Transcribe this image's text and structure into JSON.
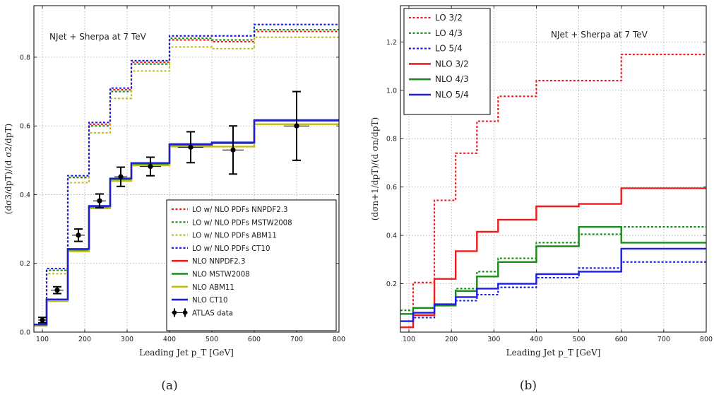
{
  "panels": [
    {
      "label": "(a)"
    },
    {
      "label": "(b)"
    }
  ],
  "chart_data": [
    {
      "type": "line",
      "step": true,
      "annotation": "NJet + Sherpa at 7 TeV",
      "xlabel": "Leading Jet p_T [GeV]",
      "ylabel": "(dσ3/dpT)/(d σ2/dpT)",
      "xlim": [
        80,
        800
      ],
      "ylim": [
        0,
        0.95
      ],
      "xticks": [
        100,
        200,
        300,
        400,
        500,
        600,
        700,
        800
      ],
      "yticks": [
        0.0,
        0.2,
        0.4,
        0.6,
        0.8
      ],
      "grid": true,
      "legend_position": "lower-right",
      "bin_edges": [
        80,
        110,
        160,
        210,
        260,
        310,
        400,
        500,
        600,
        800
      ],
      "series": [
        {
          "name": "LO w/ NLO PDFs NNPDF2.3",
          "style": "dotted",
          "color": "#ee1c1c",
          "values": [
            0.02,
            0.18,
            0.45,
            0.605,
            0.705,
            0.785,
            0.85,
            0.845,
            0.875
          ]
        },
        {
          "name": "LO w/ NLO PDFs MSTW2008",
          "style": "dotted",
          "color": "#1a8c1a",
          "values": [
            0.02,
            0.18,
            0.45,
            0.6,
            0.7,
            0.78,
            0.855,
            0.85,
            0.88
          ]
        },
        {
          "name": "LO w/ NLO PDFs ABM11",
          "style": "dotted",
          "color": "#c2bd1e",
          "values": [
            0.02,
            0.17,
            0.435,
            0.58,
            0.68,
            0.76,
            0.83,
            0.825,
            0.858
          ]
        },
        {
          "name": "LO w/ NLO PDFs CT10",
          "style": "dotted",
          "color": "#1c1ce6",
          "values": [
            0.02,
            0.185,
            0.455,
            0.61,
            0.71,
            0.79,
            0.862,
            0.862,
            0.895
          ]
        },
        {
          "name": "NLO NNPDF2.3",
          "style": "solid",
          "color": "#ee1c1c",
          "values": [
            0.022,
            0.095,
            0.24,
            0.365,
            0.445,
            0.49,
            0.545,
            0.55,
            0.615
          ]
        },
        {
          "name": "NLO MSTW2008",
          "style": "solid",
          "color": "#1a8c1a",
          "values": [
            0.022,
            0.095,
            0.24,
            0.365,
            0.445,
            0.49,
            0.545,
            0.55,
            0.615
          ]
        },
        {
          "name": "NLO ABM11",
          "style": "solid",
          "color": "#c2bd1e",
          "values": [
            0.018,
            0.09,
            0.235,
            0.36,
            0.44,
            0.485,
            0.54,
            0.54,
            0.605
          ]
        },
        {
          "name": "NLO CT10",
          "style": "solid",
          "color": "#1c1ce6",
          "values": [
            0.022,
            0.095,
            0.242,
            0.367,
            0.447,
            0.492,
            0.547,
            0.552,
            0.617
          ]
        }
      ],
      "data_points": {
        "name": "ATLAS data",
        "color": "#000000",
        "x": [
          100,
          135,
          185,
          235,
          285,
          355,
          450,
          550,
          700
        ],
        "y": [
          0.035,
          0.122,
          0.282,
          0.382,
          0.452,
          0.482,
          0.538,
          0.53,
          0.6
        ],
        "xerr": [
          10,
          15,
          15,
          15,
          15,
          25,
          30,
          25,
          30
        ],
        "yerr": [
          0.008,
          0.01,
          0.018,
          0.02,
          0.028,
          0.027,
          0.045,
          0.07,
          0.1
        ]
      }
    },
    {
      "type": "line",
      "step": true,
      "annotation": "NJet + Sherpa at 7 TeV",
      "xlabel": "Leading Jet p_T [GeV]",
      "ylabel": "(dσn+1/dpT)/(d σn/dpT)",
      "xlim": [
        80,
        800
      ],
      "ylim": [
        0,
        1.35
      ],
      "xticks": [
        100,
        200,
        300,
        400,
        500,
        600,
        700,
        800
      ],
      "yticks": [
        0.2,
        0.4,
        0.6,
        0.8,
        1.0,
        1.2
      ],
      "grid": true,
      "legend_position": "top-left",
      "bin_edges": [
        80,
        110,
        160,
        210,
        260,
        310,
        400,
        500,
        600,
        800
      ],
      "series": [
        {
          "name": "LO 3/2",
          "style": "dotted",
          "color": "#ee1c1c",
          "values": [
            0.02,
            0.205,
            0.545,
            0.74,
            0.872,
            0.975,
            1.04,
            1.04,
            1.148
          ]
        },
        {
          "name": "LO 4/3",
          "style": "dotted",
          "color": "#1a8c1a",
          "values": [
            0.09,
            0.1,
            0.115,
            0.18,
            0.25,
            0.305,
            0.37,
            0.405,
            0.435
          ]
        },
        {
          "name": "LO 5/4",
          "style": "dotted",
          "color": "#1c1ce6",
          "values": [
            0.02,
            0.06,
            0.115,
            0.13,
            0.155,
            0.185,
            0.225,
            0.265,
            0.29
          ]
        },
        {
          "name": "NLO 3/2",
          "style": "solid",
          "color": "#ee1c1c",
          "values": [
            0.02,
            0.07,
            0.22,
            0.335,
            0.415,
            0.465,
            0.52,
            0.53,
            0.595
          ]
        },
        {
          "name": "NLO 4/3",
          "style": "solid",
          "color": "#1a8c1a",
          "values": [
            0.075,
            0.1,
            0.11,
            0.17,
            0.23,
            0.29,
            0.355,
            0.435,
            0.37
          ]
        },
        {
          "name": "NLO 5/4",
          "style": "solid",
          "color": "#1c1ce6",
          "values": [
            0.045,
            0.08,
            0.115,
            0.145,
            0.18,
            0.2,
            0.24,
            0.25,
            0.345
          ]
        }
      ]
    }
  ]
}
